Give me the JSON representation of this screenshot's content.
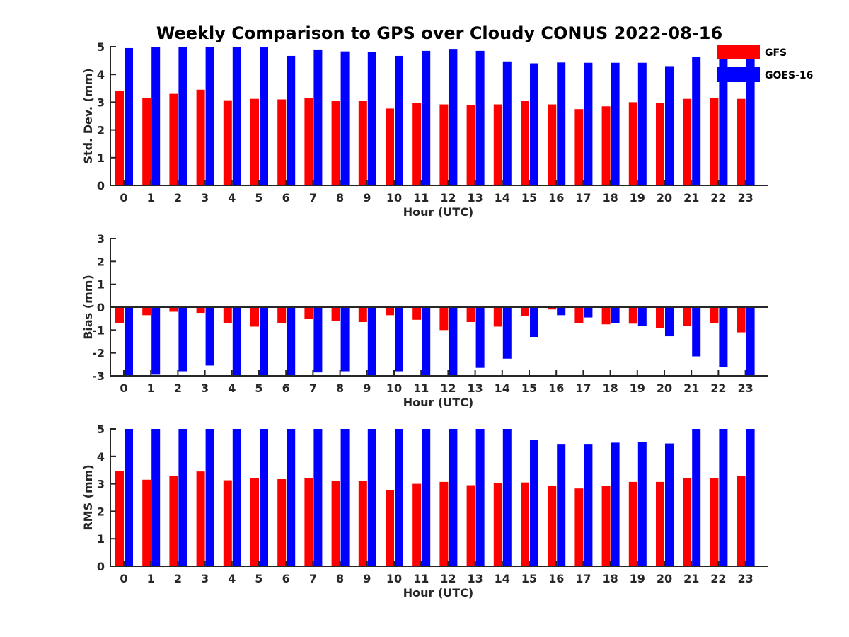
{
  "figure": {
    "title": "Weekly Comparison to GPS over Cloudy CONUS 2022-08-16"
  },
  "legend": {
    "position": "top-right",
    "items": [
      {
        "label": "GFS",
        "color": "#ff0000"
      },
      {
        "label": "GOES-16",
        "color": "#0000ff"
      }
    ]
  },
  "chart_data": [
    {
      "type": "bar",
      "title": "Weekly Comparison to GPS over Cloudy CONUS 2022-08-16",
      "xlabel": "Hour (UTC)",
      "ylabel": "Std. Dev. (mm)",
      "ylim": [
        0,
        5
      ],
      "yticks": [
        0,
        1,
        2,
        3,
        4,
        5
      ],
      "grid": false,
      "categories": [
        "0",
        "1",
        "2",
        "3",
        "4",
        "5",
        "6",
        "7",
        "8",
        "9",
        "10",
        "11",
        "12",
        "13",
        "14",
        "15",
        "16",
        "17",
        "18",
        "19",
        "20",
        "21",
        "22",
        "23"
      ],
      "series": [
        {
          "name": "GFS",
          "color": "#ff0000",
          "values": [
            3.4,
            3.15,
            3.3,
            3.45,
            3.07,
            3.12,
            3.1,
            3.15,
            3.05,
            3.05,
            2.77,
            2.97,
            2.92,
            2.9,
            2.92,
            3.05,
            2.92,
            2.75,
            2.85,
            3.0,
            2.97,
            3.12,
            3.15,
            3.12
          ]
        },
        {
          "name": "GOES-16",
          "color": "#0000ff",
          "values": [
            4.95,
            5.0,
            5.0,
            5.0,
            5.0,
            5.0,
            4.67,
            4.9,
            4.83,
            4.8,
            4.67,
            4.85,
            4.92,
            4.85,
            4.47,
            4.4,
            4.43,
            4.42,
            4.42,
            4.42,
            4.3,
            4.62,
            4.7,
            4.65
          ]
        }
      ]
    },
    {
      "type": "bar",
      "xlabel": "Hour (UTC)",
      "ylabel": "Bias (mm)",
      "ylim": [
        -3,
        3
      ],
      "yticks": [
        -3,
        -2,
        -1,
        0,
        1,
        2,
        3
      ],
      "grid": false,
      "categories": [
        "0",
        "1",
        "2",
        "3",
        "4",
        "5",
        "6",
        "7",
        "8",
        "9",
        "10",
        "11",
        "12",
        "13",
        "14",
        "15",
        "16",
        "17",
        "18",
        "19",
        "20",
        "21",
        "22",
        "23"
      ],
      "series": [
        {
          "name": "GFS",
          "color": "#ff0000",
          "values": [
            -0.7,
            -0.35,
            -0.2,
            -0.25,
            -0.7,
            -0.85,
            -0.7,
            -0.5,
            -0.6,
            -0.65,
            -0.35,
            -0.55,
            -1.0,
            -0.65,
            -0.85,
            -0.4,
            -0.1,
            -0.7,
            -0.75,
            -0.72,
            -0.9,
            -0.82,
            -0.7,
            -1.1
          ]
        },
        {
          "name": "GOES-16",
          "color": "#0000ff",
          "values": [
            -3.0,
            -2.95,
            -2.8,
            -2.55,
            -3.0,
            -3.0,
            -3.0,
            -2.85,
            -2.8,
            -3.0,
            -2.8,
            -2.98,
            -3.0,
            -2.65,
            -2.25,
            -1.3,
            -0.35,
            -0.45,
            -0.68,
            -0.82,
            -1.27,
            -2.15,
            -2.6,
            -3.0
          ]
        }
      ]
    },
    {
      "type": "bar",
      "xlabel": "Hour (UTC)",
      "ylabel": "RMS (mm)",
      "ylim": [
        0,
        5
      ],
      "yticks": [
        0,
        1,
        2,
        3,
        4,
        5
      ],
      "grid": false,
      "categories": [
        "0",
        "1",
        "2",
        "3",
        "4",
        "5",
        "6",
        "7",
        "8",
        "9",
        "10",
        "11",
        "12",
        "13",
        "14",
        "15",
        "16",
        "17",
        "18",
        "19",
        "20",
        "21",
        "22",
        "23"
      ],
      "series": [
        {
          "name": "GFS",
          "color": "#ff0000",
          "values": [
            3.47,
            3.15,
            3.3,
            3.45,
            3.13,
            3.22,
            3.17,
            3.2,
            3.1,
            3.1,
            2.77,
            3.0,
            3.07,
            2.95,
            3.03,
            3.05,
            2.92,
            2.83,
            2.93,
            3.07,
            3.07,
            3.22,
            3.22,
            3.28
          ]
        },
        {
          "name": "GOES-16",
          "color": "#0000ff",
          "values": [
            5.0,
            5.0,
            5.0,
            5.0,
            5.0,
            5.0,
            5.0,
            5.0,
            5.0,
            5.0,
            5.0,
            5.0,
            5.0,
            5.0,
            5.0,
            4.6,
            4.43,
            4.43,
            4.5,
            4.52,
            4.47,
            5.0,
            5.0,
            5.0
          ]
        }
      ]
    }
  ]
}
